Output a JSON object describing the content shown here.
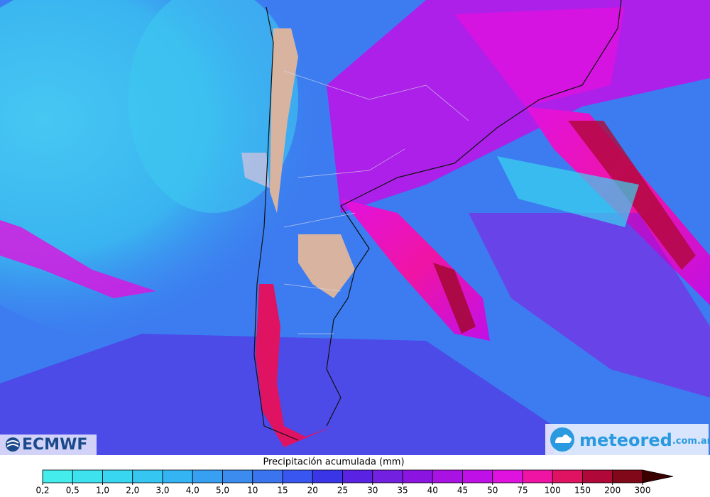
{
  "logos": {
    "left": "ECMWF",
    "right": "meteored",
    "right_suffix": ".com.ar"
  },
  "legend": {
    "title": "Precipitación acumulada (mm)",
    "ticks": [
      {
        "value": 0.2,
        "label": "0,2"
      },
      {
        "value": 0.5,
        "label": "0,5"
      },
      {
        "value": 1.0,
        "label": "1,0"
      },
      {
        "value": 2.0,
        "label": "2,0"
      },
      {
        "value": 3.0,
        "label": "3,0"
      },
      {
        "value": 4.0,
        "label": "4,0"
      },
      {
        "value": 5.0,
        "label": "5,0"
      },
      10,
      15,
      20,
      25,
      30,
      35,
      40,
      45,
      50,
      75,
      100,
      150,
      200,
      300
    ],
    "colors": [
      "#44ecec",
      "#3ee2ee",
      "#38d6f0",
      "#36c6f2",
      "#34b4f2",
      "#38a0f2",
      "#3c8cf0",
      "#3a74ee",
      "#3a56f0",
      "#3a36e8",
      "#5a22e2",
      "#7420e0",
      "#8c14e0",
      "#a812e2",
      "#c010e8",
      "#e012e0",
      "#f014a4",
      "#e01262",
      "#b00838",
      "#800818"
    ],
    "over_color": "#3a0000"
  }
}
